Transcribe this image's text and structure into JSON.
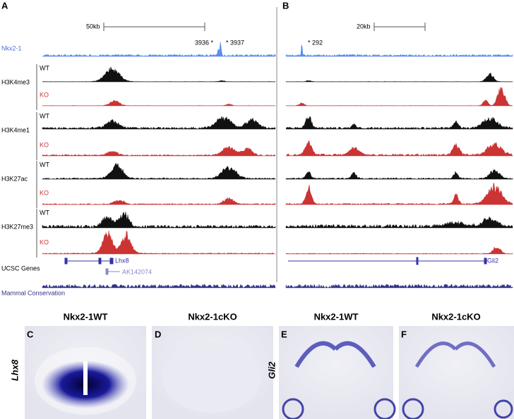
{
  "panel_a": {
    "label": "A",
    "scale": "50kb",
    "peak_labels": [
      "3936 *",
      "* 3937"
    ],
    "genes": [
      "Lhx8",
      "AK142074"
    ]
  },
  "panel_b": {
    "label": "B",
    "scale": "20kb",
    "peak_labels": [
      "* 292"
    ],
    "genes": [
      "Gli2"
    ]
  },
  "track_labels": {
    "nkx": "Nkx2-1",
    "marks": [
      "H3K4me3",
      "H3K4me1",
      "H3K27ac",
      "H3K27me3"
    ],
    "wt": "WT",
    "ko": "KO",
    "genes": "UCSC Genes",
    "conservation": "Mammal Conservation"
  },
  "in_situ": {
    "panels": [
      {
        "label": "C",
        "title": "Nkx2-1WT"
      },
      {
        "label": "D",
        "title": "Nkx2-1cKO"
      },
      {
        "label": "E",
        "title": "Nkx2-1WT"
      },
      {
        "label": "F",
        "title": "Nkx2-1cKO"
      }
    ],
    "genes": [
      "Lhx8",
      "Gli2"
    ]
  }
}
